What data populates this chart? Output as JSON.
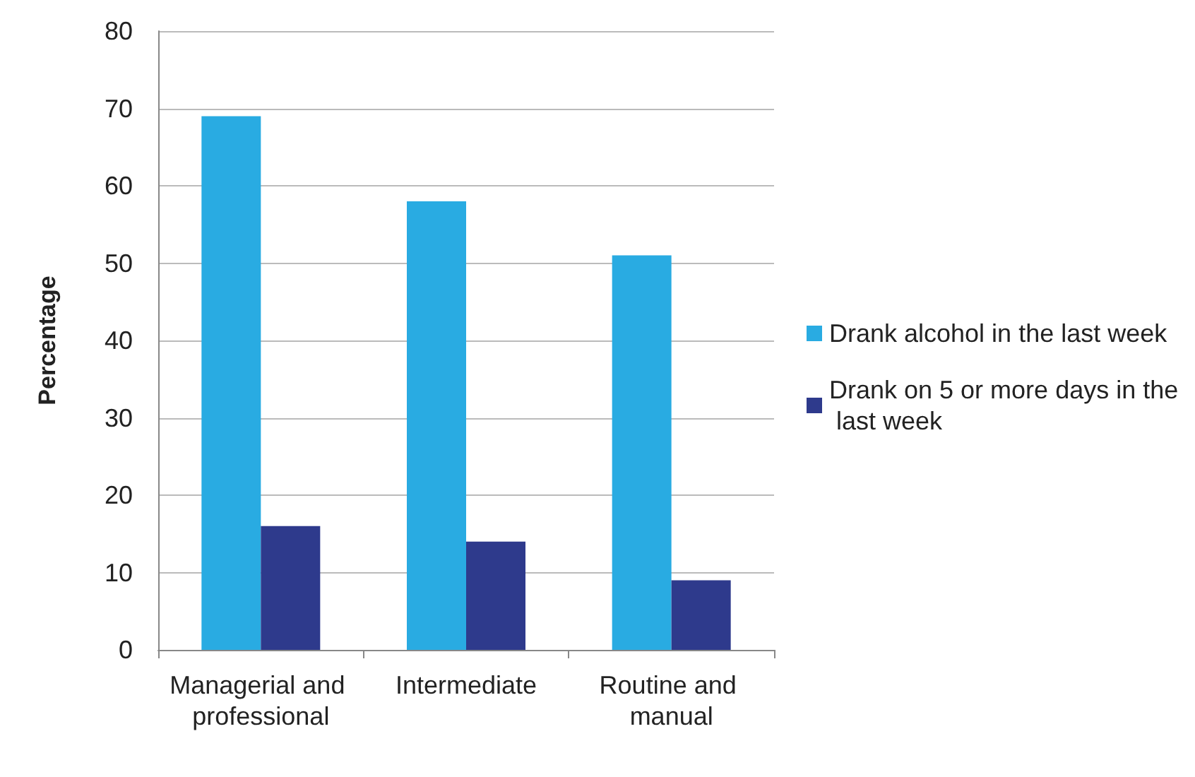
{
  "chart_data": {
    "type": "bar",
    "ylabel": "Percentage",
    "categories": [
      "Managerial and professional",
      "Intermediate",
      "Routine and manual"
    ],
    "series": [
      {
        "name": "Drank alcohol in the last week",
        "color": "#29abe2",
        "values": [
          69,
          58,
          51
        ]
      },
      {
        "name": "Drank on 5 or more days in the last week",
        "color": "#2e3a8c",
        "values": [
          16,
          14,
          9
        ]
      }
    ],
    "ylim": [
      0,
      80
    ],
    "yticks": [
      0,
      10,
      20,
      30,
      40,
      50,
      60,
      70,
      80
    ],
    "grid": "y",
    "legend": "right"
  }
}
